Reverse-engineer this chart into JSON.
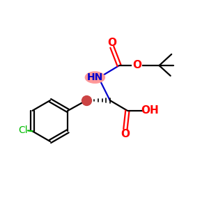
{
  "bg_color": "#ffffff",
  "fig_size": [
    3.0,
    3.0
  ],
  "dpi": 100,
  "bond_color": "#000000",
  "bond_lw": 1.6,
  "heteroatom_color": "#ff0000",
  "nitrogen_color": "#0000cc",
  "chlorine_color": "#00bb00",
  "nh_bg_color": "#ff9999",
  "nh_label": "HN",
  "o_label": "O",
  "oh_label": "OH",
  "cl_label": "Cl",
  "stereo_dot_color": "#cc4444",
  "font_size_main": 10,
  "font_size_oh": 11,
  "font_size_o": 11,
  "font_size_cl": 10
}
